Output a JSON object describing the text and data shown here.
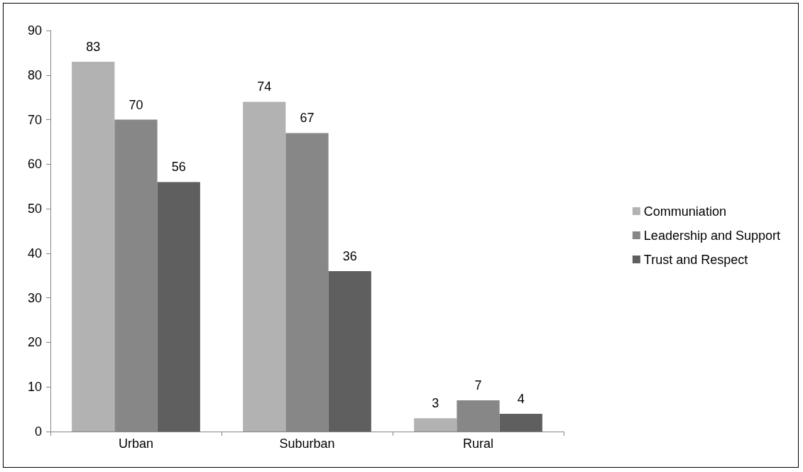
{
  "chart_data": {
    "type": "bar",
    "categories": [
      "Urban",
      "Suburban",
      "Rural"
    ],
    "series": [
      {
        "name": "Communiation",
        "color": "#b2b2b2",
        "values": [
          83,
          74,
          3
        ]
      },
      {
        "name": "Leadership and Support",
        "color": "#878787",
        "values": [
          70,
          67,
          7
        ]
      },
      {
        "name": "Trust and Respect",
        "color": "#5f5f5f",
        "values": [
          56,
          36,
          4
        ]
      }
    ],
    "ylim": [
      0,
      90
    ],
    "yticks": [
      0,
      10,
      20,
      30,
      40,
      50,
      60,
      70,
      80,
      90
    ],
    "grid": false,
    "legend": "right",
    "data_labels": true
  }
}
